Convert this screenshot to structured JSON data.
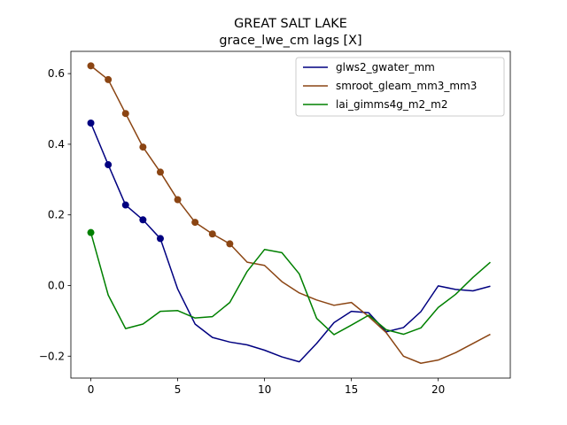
{
  "chart_data": {
    "type": "line",
    "title": "GREAT SALT LAKE",
    "subtitle": "grace_lwe_cm lags [X]",
    "xlabel": "",
    "ylabel": "",
    "xlim": [
      -1.15,
      24.15
    ],
    "ylim": [
      -0.262,
      0.663
    ],
    "xticks": [
      0,
      5,
      10,
      15,
      20
    ],
    "yticks": [
      -0.2,
      0.0,
      0.2,
      0.4,
      0.6
    ],
    "xtick_labels": [
      "0",
      "5",
      "10",
      "15",
      "20"
    ],
    "ytick_labels": [
      "−0.2",
      "0.0",
      "0.2",
      "0.4",
      "0.6"
    ],
    "grid": false,
    "legend_position": "top-right",
    "x": [
      0,
      1,
      2,
      3,
      4,
      5,
      6,
      7,
      8,
      9,
      10,
      11,
      12,
      13,
      14,
      15,
      16,
      17,
      18,
      19,
      20,
      21,
      22,
      23
    ],
    "series": [
      {
        "name": "glws2_gwater_mm",
        "color": "#000080",
        "values": [
          0.46,
          0.342,
          0.228,
          0.186,
          0.133,
          -0.01,
          -0.109,
          -0.147,
          -0.16,
          -0.168,
          -0.183,
          -0.202,
          -0.216,
          -0.164,
          -0.105,
          -0.073,
          -0.077,
          -0.131,
          -0.119,
          -0.074,
          -0.001,
          -0.011,
          -0.015,
          -0.002
        ],
        "markers": [
          0,
          1,
          2,
          3,
          4
        ]
      },
      {
        "name": "smroot_gleam_mm3_mm3",
        "color": "#8B4513",
        "values": [
          0.622,
          0.583,
          0.487,
          0.392,
          0.321,
          0.243,
          0.179,
          0.146,
          0.118,
          0.066,
          0.057,
          0.011,
          -0.021,
          -0.041,
          -0.056,
          -0.048,
          -0.088,
          -0.133,
          -0.2,
          -0.22,
          -0.211,
          -0.19,
          -0.164,
          -0.138
        ],
        "markers": [
          0,
          1,
          2,
          3,
          4,
          5,
          6,
          7,
          8
        ]
      },
      {
        "name": "lai_gimms4g_m2_m2",
        "color": "#008000",
        "values": [
          0.15,
          -0.027,
          -0.122,
          -0.109,
          -0.073,
          -0.071,
          -0.092,
          -0.088,
          -0.048,
          0.04,
          0.102,
          0.093,
          0.033,
          -0.093,
          -0.139,
          -0.112,
          -0.084,
          -0.125,
          -0.138,
          -0.12,
          -0.062,
          -0.025,
          0.023,
          0.066
        ],
        "markers": [
          0
        ]
      }
    ]
  }
}
